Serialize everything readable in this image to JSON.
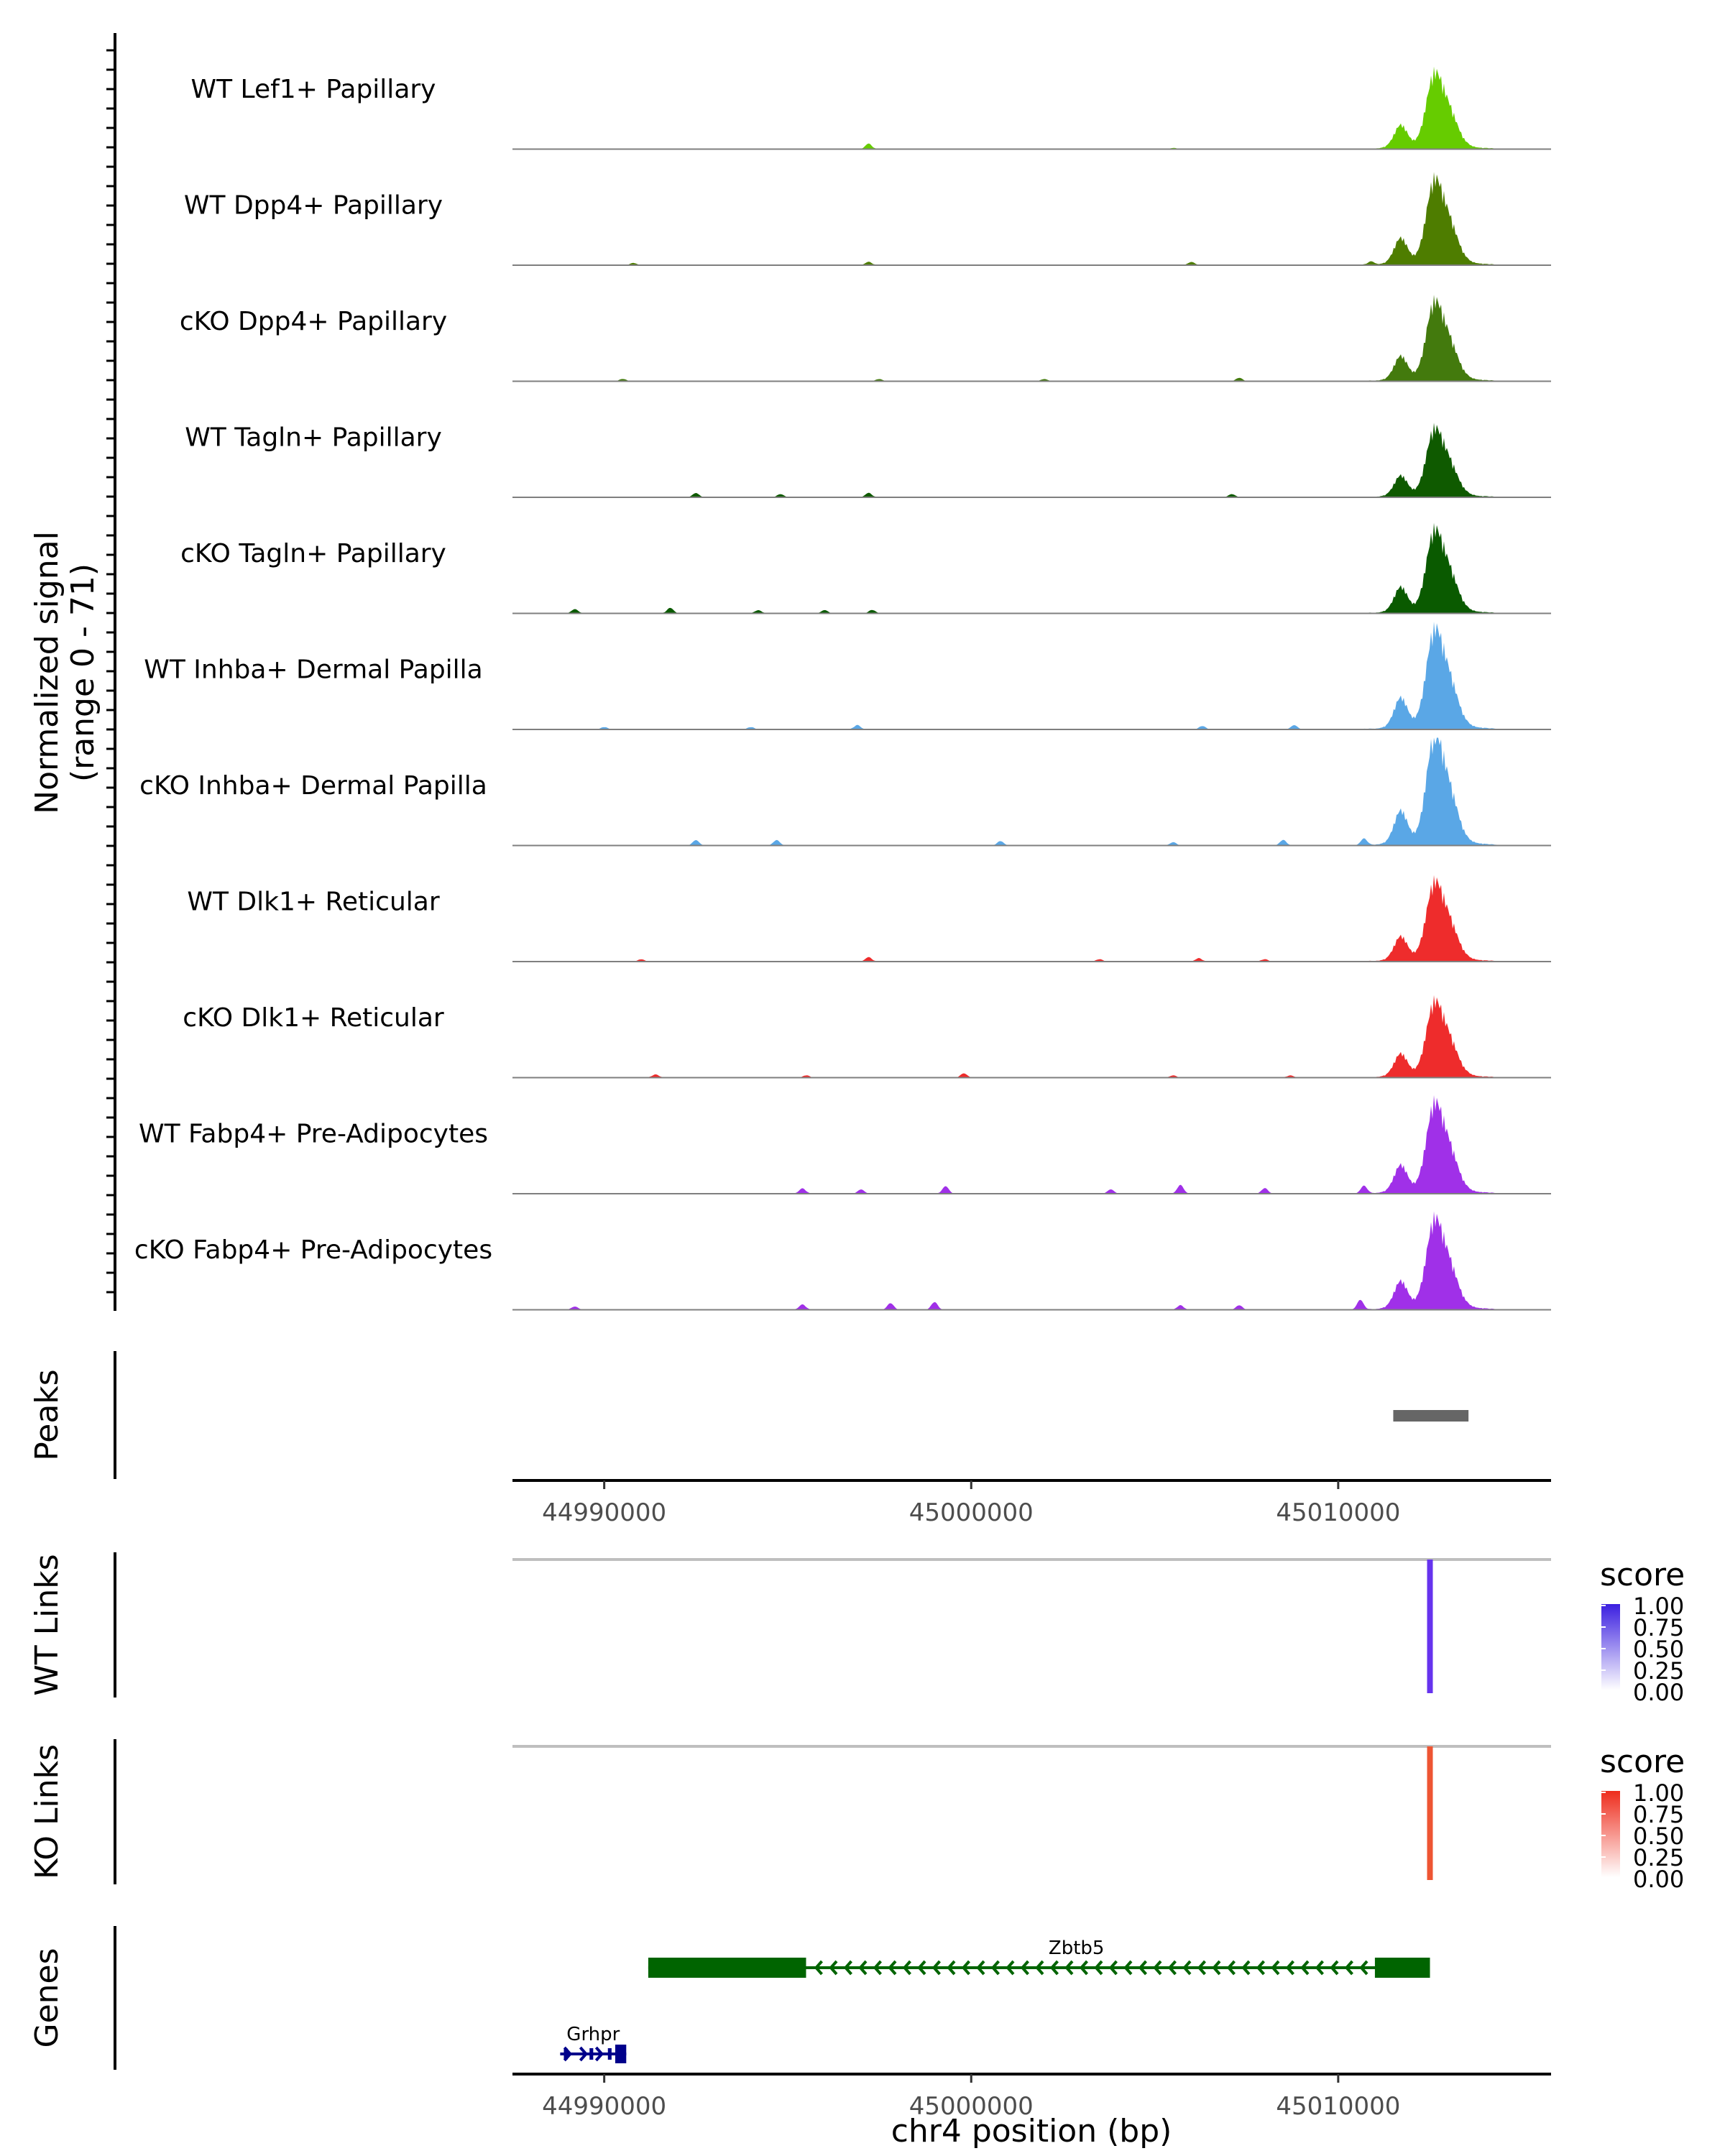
{
  "chart_data": {
    "type": "area",
    "region": {
      "chromosome": "chr4",
      "start": 44987500,
      "end": 45015800
    },
    "signal": {
      "ylabel_line1": "Normalized signal",
      "ylabel_line2": "(range 0 - 71)",
      "ylim": [
        0,
        71
      ],
      "peak_center": 45012600,
      "tracks": [
        {
          "name": "WT Lef1+ Papillary",
          "color": "#66cc00",
          "peak_height": 0.62,
          "noise": [
            [
              44997200,
              0.05
            ],
            [
              45005500,
              0.01
            ]
          ]
        },
        {
          "name": "WT Dpp4+ Papillary",
          "color": "#4e7d00",
          "peak_height": 0.7,
          "noise": [
            [
              44990800,
              0.02
            ],
            [
              44997200,
              0.03
            ],
            [
              45006000,
              0.03
            ],
            [
              45010900,
              0.03
            ]
          ]
        },
        {
          "name": "cKO Dpp4+ Papillary",
          "color": "#437a0d",
          "peak_height": 0.65,
          "noise": [
            [
              44990500,
              0.02
            ],
            [
              44997500,
              0.02
            ],
            [
              45002000,
              0.02
            ],
            [
              45007300,
              0.03
            ]
          ]
        },
        {
          "name": "WT Tagln+ Papillary",
          "color": "#0f5a00",
          "peak_height": 0.56,
          "noise": [
            [
              44992500,
              0.04
            ],
            [
              44994800,
              0.03
            ],
            [
              44997200,
              0.04
            ],
            [
              45007100,
              0.03
            ]
          ]
        },
        {
          "name": "cKO Tagln+ Papillary",
          "color": "#0a5a00",
          "peak_height": 0.68,
          "noise": [
            [
              44989200,
              0.04
            ],
            [
              44991800,
              0.05
            ],
            [
              44994200,
              0.03
            ],
            [
              44996000,
              0.03
            ],
            [
              44997300,
              0.03
            ]
          ]
        },
        {
          "name": "WT Inhba+ Dermal Papilla",
          "color": "#5aa7e6",
          "peak_height": 0.82,
          "noise": [
            [
              44990000,
              0.02
            ],
            [
              44994000,
              0.02
            ],
            [
              44996900,
              0.04
            ],
            [
              45006300,
              0.03
            ],
            [
              45008800,
              0.04
            ]
          ]
        },
        {
          "name": "cKO Inhba+ Dermal Papilla",
          "color": "#5aa7e6",
          "peak_height": 0.9,
          "noise": [
            [
              44992500,
              0.05
            ],
            [
              44994700,
              0.05
            ],
            [
              45000800,
              0.04
            ],
            [
              45005500,
              0.03
            ],
            [
              45008500,
              0.05
            ],
            [
              45010700,
              0.06
            ]
          ]
        },
        {
          "name": "WT Dlk1+ Reticular",
          "color": "#ee2c2c",
          "peak_height": 0.65,
          "noise": [
            [
              44991000,
              0.02
            ],
            [
              44997200,
              0.04
            ],
            [
              45003500,
              0.02
            ],
            [
              45006200,
              0.03
            ],
            [
              45008000,
              0.02
            ]
          ]
        },
        {
          "name": "cKO Dlk1+ Reticular",
          "color": "#ee2c2c",
          "peak_height": 0.62,
          "noise": [
            [
              44991400,
              0.03
            ],
            [
              44995500,
              0.02
            ],
            [
              44999800,
              0.04
            ],
            [
              45005500,
              0.02
            ],
            [
              45008700,
              0.02
            ]
          ]
        },
        {
          "name": "WT Fabp4+ Pre-Adipocytes",
          "color": "#a030e8",
          "peak_height": 0.74,
          "noise": [
            [
              44995400,
              0.05
            ],
            [
              44997000,
              0.04
            ],
            [
              44999300,
              0.07
            ],
            [
              45003800,
              0.04
            ],
            [
              45005700,
              0.08
            ],
            [
              45008000,
              0.05
            ],
            [
              45010700,
              0.07
            ]
          ]
        },
        {
          "name": "cKO Fabp4+ Pre-Adipocytes",
          "color": "#a030e8",
          "peak_height": 0.74,
          "noise": [
            [
              44989200,
              0.03
            ],
            [
              44995400,
              0.05
            ],
            [
              44997800,
              0.06
            ],
            [
              44999000,
              0.07
            ],
            [
              45005700,
              0.04
            ],
            [
              45007300,
              0.04
            ],
            [
              45010600,
              0.09
            ]
          ]
        }
      ]
    },
    "peaks": {
      "label": "Peaks",
      "color": "#666666",
      "intervals": [
        [
          45011500,
          45013550
        ]
      ]
    },
    "x_ticks": [
      44990000,
      45000000,
      45010000
    ],
    "x_tick_labels": [
      "44990000",
      "45000000",
      "45010000"
    ],
    "xlabel": "chr4 position (bp)",
    "links": [
      {
        "label": "WT Links",
        "color": "#6633ee",
        "gradient_color": "#3b1fe0",
        "link_x": 45012500,
        "score": 1.0,
        "legend_title": "score",
        "legend_ticks": [
          "1.00",
          "0.75",
          "0.50",
          "0.25",
          "0.00"
        ]
      },
      {
        "label": "KO Links",
        "color": "#ee5533",
        "gradient_color": "#ee2c1c",
        "link_x": 45012500,
        "score": 1.0,
        "legend_title": "score",
        "legend_ticks": [
          "1.00",
          "0.75",
          "0.50",
          "0.25",
          "0.00"
        ]
      }
    ],
    "genes": {
      "label": "Genes",
      "items": [
        {
          "name": "Zbtb5",
          "color": "#006400",
          "strand": "-",
          "start": 44991200,
          "end": 45012500,
          "exons": [
            [
              44991200,
              44995500
            ],
            [
              45011000,
              45012500
            ]
          ]
        },
        {
          "name": "Grhpr",
          "color": "#00008b",
          "strand": "+",
          "start": 44988800,
          "end": 44990600,
          "exons": [
            [
              44988900,
              44989000
            ],
            [
              44989600,
              44989700
            ],
            [
              44990100,
              44990200
            ],
            [
              44990300,
              44990600
            ]
          ]
        }
      ]
    }
  }
}
